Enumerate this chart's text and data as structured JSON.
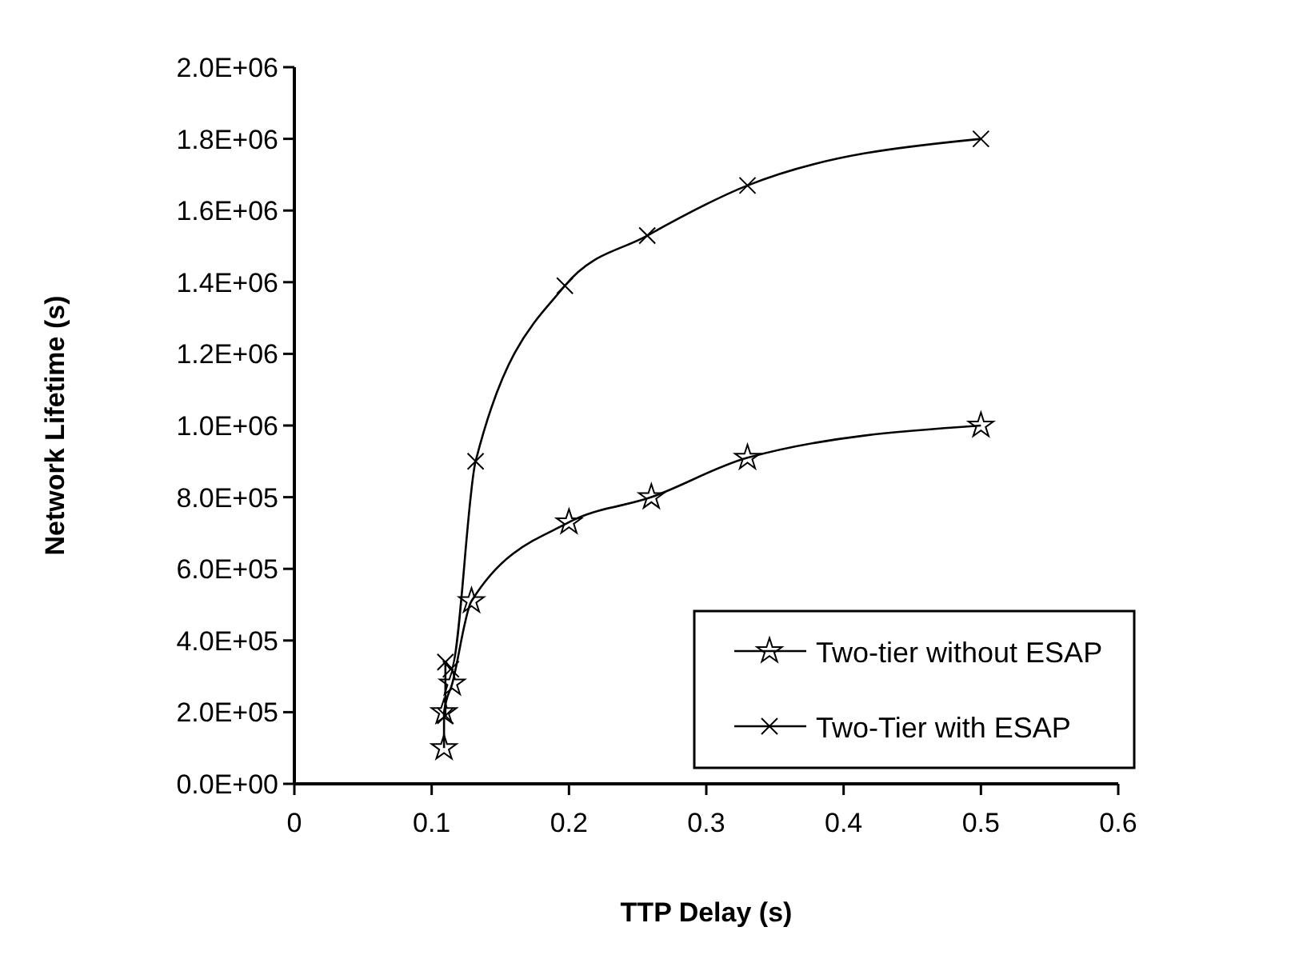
{
  "chart_data": {
    "type": "line",
    "xlabel": "TTP Delay (s)",
    "ylabel": "Network Lifetime (s)",
    "xlim": [
      0,
      0.6
    ],
    "xticks": [
      0,
      0.1,
      0.2,
      0.3,
      0.4,
      0.5,
      0.6
    ],
    "ylim": [
      0,
      2000000
    ],
    "yticks": [
      {
        "value": 0,
        "label": "0.0E+00"
      },
      {
        "value": 200000,
        "label": "2.0E+05"
      },
      {
        "value": 400000,
        "label": "4.0E+05"
      },
      {
        "value": 600000,
        "label": "6.0E+05"
      },
      {
        "value": 800000,
        "label": "8.0E+05"
      },
      {
        "value": 1000000,
        "label": "1.0E+06"
      },
      {
        "value": 1200000,
        "label": "1.2E+06"
      },
      {
        "value": 1400000,
        "label": "1.4E+06"
      },
      {
        "value": 1600000,
        "label": "1.6E+06"
      },
      {
        "value": 1800000,
        "label": "1.8E+06"
      },
      {
        "value": 2000000,
        "label": "2.0E+06"
      }
    ],
    "grid": false,
    "legend": "bottom right",
    "series": [
      {
        "name": "Two-tier without ESAP",
        "color": "#000000",
        "marker": "star",
        "x": [
          0.109,
          0.109,
          0.115,
          0.129,
          0.2,
          0.26,
          0.33,
          0.5
        ],
        "values": [
          100000,
          200000,
          280000,
          510000,
          730000,
          800000,
          910000,
          1000000
        ]
      },
      {
        "name": "Two-Tier with ESAP",
        "color": "#000000",
        "marker": "cross",
        "x": [
          0.11,
          0.11,
          0.114,
          0.132,
          0.197,
          0.257,
          0.33,
          0.5
        ],
        "values": [
          190000,
          340000,
          320000,
          900000,
          1390000,
          1530000,
          1670000,
          1800000
        ]
      }
    ]
  }
}
